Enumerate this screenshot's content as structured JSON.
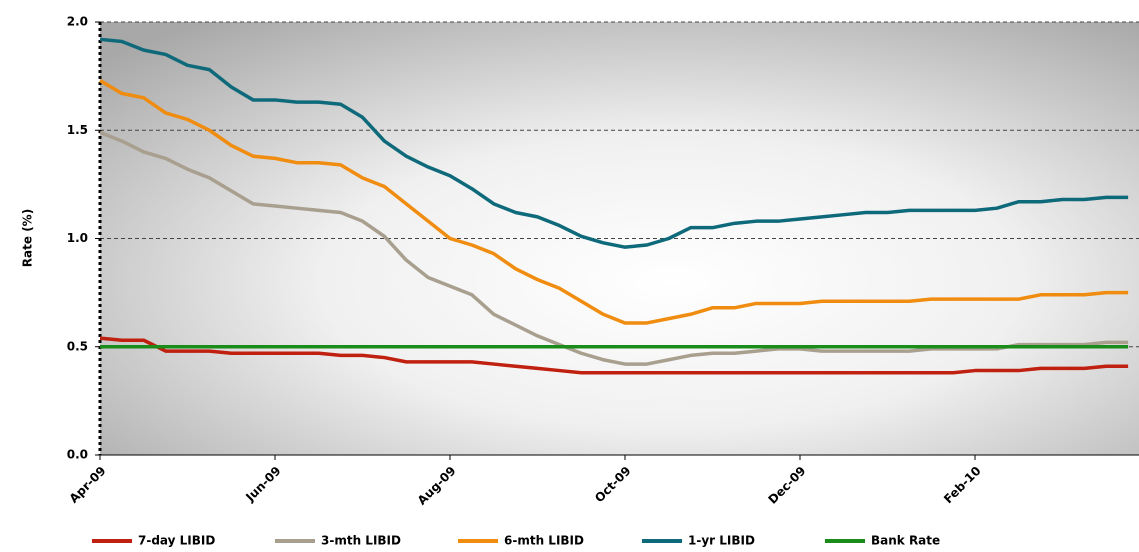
{
  "chart_data": {
    "type": "line",
    "y_label": "Rate (%)",
    "categories": [
      "Apr-09",
      null,
      null,
      null,
      null,
      null,
      null,
      null,
      "Jun-09",
      null,
      null,
      null,
      null,
      null,
      null,
      null,
      "Aug-09",
      null,
      null,
      null,
      null,
      null,
      null,
      null,
      "Oct-09",
      null,
      null,
      null,
      null,
      null,
      null,
      null,
      "Dec-09",
      null,
      null,
      null,
      null,
      null,
      null,
      null,
      "Feb-10",
      null,
      null,
      null,
      null,
      null,
      null,
      null
    ],
    "series": [
      {
        "name": "7-day LIBID",
        "color": "#c0200f",
        "values": [
          0.54,
          0.53,
          0.53,
          0.48,
          0.48,
          0.48,
          0.47,
          0.47,
          0.47,
          0.47,
          0.47,
          0.46,
          0.46,
          0.45,
          0.43,
          0.43,
          0.43,
          0.43,
          0.42,
          0.41,
          0.4,
          0.39,
          0.38,
          0.38,
          0.38,
          0.38,
          0.38,
          0.38,
          0.38,
          0.38,
          0.38,
          0.38,
          0.38,
          0.38,
          0.38,
          0.38,
          0.38,
          0.38,
          0.38,
          0.38,
          0.39,
          0.39,
          0.39,
          0.4,
          0.4,
          0.4,
          0.41,
          0.41
        ]
      },
      {
        "name": "3-mth LIBID",
        "color": "#a89f8f",
        "values": [
          1.49,
          1.45,
          1.4,
          1.37,
          1.32,
          1.28,
          1.22,
          1.16,
          1.15,
          1.14,
          1.13,
          1.12,
          1.08,
          1.01,
          0.9,
          0.82,
          0.78,
          0.74,
          0.65,
          0.6,
          0.55,
          0.51,
          0.47,
          0.44,
          0.42,
          0.42,
          0.44,
          0.46,
          0.47,
          0.47,
          0.48,
          0.49,
          0.49,
          0.48,
          0.48,
          0.48,
          0.48,
          0.48,
          0.49,
          0.49,
          0.49,
          0.49,
          0.51,
          0.51,
          0.51,
          0.51,
          0.52,
          0.52
        ]
      },
      {
        "name": "6-mth LIBID",
        "color": "#f08c10",
        "values": [
          1.73,
          1.67,
          1.65,
          1.58,
          1.55,
          1.5,
          1.43,
          1.38,
          1.37,
          1.35,
          1.35,
          1.34,
          1.28,
          1.24,
          1.16,
          1.08,
          1.0,
          0.97,
          0.93,
          0.86,
          0.81,
          0.77,
          0.71,
          0.65,
          0.61,
          0.61,
          0.63,
          0.65,
          0.68,
          0.68,
          0.7,
          0.7,
          0.7,
          0.71,
          0.71,
          0.71,
          0.71,
          0.71,
          0.72,
          0.72,
          0.72,
          0.72,
          0.72,
          0.74,
          0.74,
          0.74,
          0.75,
          0.75
        ]
      },
      {
        "name": "1-yr LIBID",
        "color": "#0e6a7a",
        "values": [
          1.92,
          1.91,
          1.87,
          1.85,
          1.8,
          1.78,
          1.7,
          1.64,
          1.64,
          1.63,
          1.63,
          1.62,
          1.56,
          1.45,
          1.38,
          1.33,
          1.29,
          1.23,
          1.16,
          1.12,
          1.1,
          1.06,
          1.01,
          0.98,
          0.96,
          0.97,
          1.0,
          1.05,
          1.05,
          1.07,
          1.08,
          1.08,
          1.09,
          1.1,
          1.11,
          1.12,
          1.12,
          1.13,
          1.13,
          1.13,
          1.13,
          1.14,
          1.17,
          1.17,
          1.18,
          1.18,
          1.19,
          1.19
        ]
      },
      {
        "name": "Bank Rate",
        "color": "#1a8c1a",
        "values": [
          0.5,
          0.5,
          0.5,
          0.5,
          0.5,
          0.5,
          0.5,
          0.5,
          0.5,
          0.5,
          0.5,
          0.5,
          0.5,
          0.5,
          0.5,
          0.5,
          0.5,
          0.5,
          0.5,
          0.5,
          0.5,
          0.5,
          0.5,
          0.5,
          0.5,
          0.5,
          0.5,
          0.5,
          0.5,
          0.5,
          0.5,
          0.5,
          0.5,
          0.5,
          0.5,
          0.5,
          0.5,
          0.5,
          0.5,
          0.5,
          0.5,
          0.5,
          0.5,
          0.5,
          0.5,
          0.5,
          0.5,
          0.5
        ]
      }
    ],
    "ylim": [
      0,
      2
    ],
    "yticks": [
      {
        "value": 0,
        "label": "0.0"
      },
      {
        "value": 0.5,
        "label": "0.5"
      },
      {
        "value": 1,
        "label": "1.0"
      },
      {
        "value": 1.5,
        "label": "1.5"
      },
      {
        "value": 2,
        "label": "2.0"
      }
    ],
    "grid": true,
    "legend": "bottom"
  }
}
